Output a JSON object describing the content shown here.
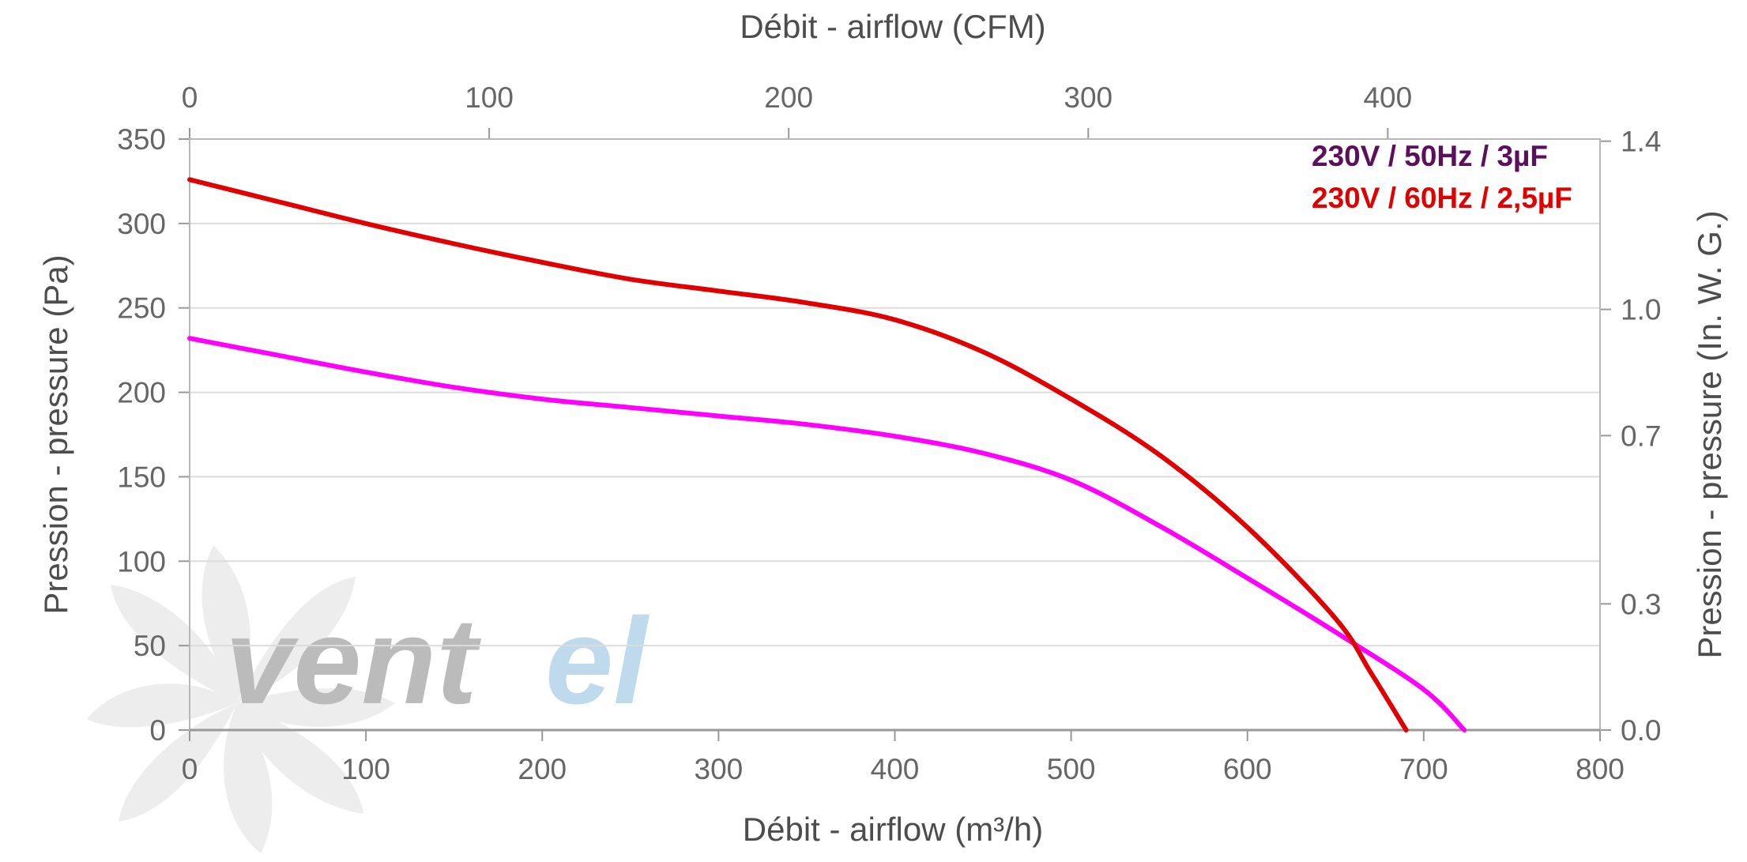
{
  "chart_data": {
    "type": "line",
    "title": "",
    "xlabel": "Débit - airflow (m³/h)",
    "xlabel_top": "Débit - airflow (CFM)",
    "ylabel": "Pression - pressure (Pa)",
    "ylabel_right": "Pression - pressure (In. W. G.)",
    "xlim": [
      0,
      800
    ],
    "ylim": [
      0,
      350
    ],
    "x_ticks": [
      0,
      100,
      200,
      300,
      400,
      500,
      600,
      700,
      800
    ],
    "y_ticks": [
      0,
      50,
      100,
      150,
      200,
      250,
      300,
      350
    ],
    "top_x_ticks": [
      0,
      100,
      200,
      300,
      400
    ],
    "top_x_scale": "CFM (1 CFM = 1.699 m³/h)",
    "right_y_ticks": [
      "0.0",
      "0.3",
      "0.7",
      "1.0",
      "1.4"
    ],
    "right_y_scale": "In. W. G. (1 In. W. G. = 249.1 Pa)",
    "grid": true,
    "legend_position": "top-right",
    "series": [
      {
        "name": "230V / 50Hz / 3µF",
        "color": "#ff00ff",
        "legend_color": "#5c0f5c",
        "x": [
          0,
          50,
          100,
          150,
          200,
          250,
          300,
          350,
          400,
          450,
          500,
          550,
          600,
          650,
          700,
          723
        ],
        "y": [
          232,
          222,
          212,
          203,
          196,
          191,
          186,
          181,
          174,
          164,
          148,
          121,
          90,
          58,
          24,
          0
        ]
      },
      {
        "name": "230V / 60Hz / 2,5µF",
        "color": "#e00000",
        "legend_color": "#e00000",
        "x": [
          0,
          50,
          100,
          150,
          200,
          250,
          300,
          350,
          400,
          450,
          500,
          550,
          600,
          650,
          670,
          690
        ],
        "y": [
          326,
          313,
          300,
          288,
          277,
          267,
          260,
          253,
          243,
          224,
          196,
          163,
          120,
          66,
          34,
          0
        ]
      }
    ]
  },
  "watermark": {
    "text_dark": "vent",
    "text_light": "el",
    "color_dark": "#b4b4b4",
    "color_light": "#b8d6ea",
    "icon": "fan-icon"
  }
}
